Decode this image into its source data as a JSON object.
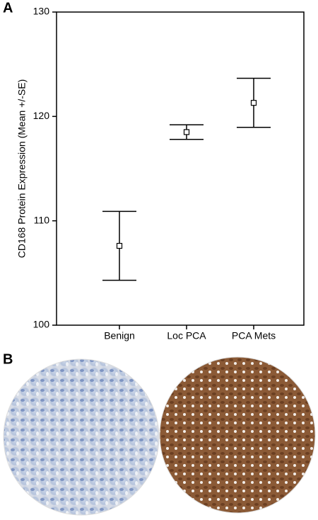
{
  "panel_labels": [
    "A",
    "B"
  ],
  "chart_data": {
    "type": "errorbar",
    "y_label": "CD168 Protein Expression (Mean +/-SE)",
    "categories": [
      "Benign",
      "Loc PCA",
      "PCA Mets"
    ],
    "values": [
      107.6,
      118.5,
      121.3
    ],
    "errors": [
      3.3,
      0.7,
      2.35
    ],
    "color": "#000000",
    "ylim": [
      100,
      130
    ],
    "yticks": [
      100,
      110,
      120,
      130
    ]
  }
}
